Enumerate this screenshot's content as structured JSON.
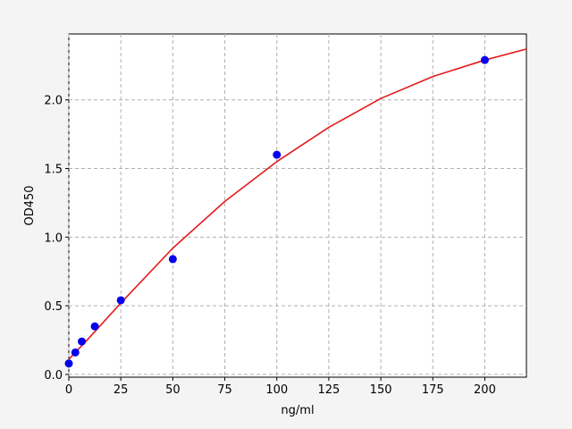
{
  "chart_data": {
    "type": "scatter",
    "xlabel": "ng/ml",
    "ylabel": "OD450",
    "xlim": [
      0,
      220
    ],
    "ylim": [
      -0.02,
      2.48
    ],
    "xticks": [
      0,
      25,
      50,
      75,
      100,
      125,
      150,
      175,
      200
    ],
    "yticks": [
      0.0,
      0.5,
      1.0,
      1.5,
      2.0
    ],
    "ytick_labels": [
      "0.0",
      "0.5",
      "1.0",
      "1.5",
      "2.0"
    ],
    "grid": true,
    "series": [
      {
        "type": "scatter",
        "color": "#0000ee",
        "x": [
          0,
          3.125,
          6.25,
          12.5,
          25,
          50,
          100,
          200
        ],
        "y": [
          0.08,
          0.16,
          0.24,
          0.35,
          0.54,
          0.84,
          1.6,
          2.29
        ]
      },
      {
        "type": "line",
        "color": "#e41a1c",
        "x": [
          0,
          10,
          25,
          50,
          75,
          100,
          125,
          150,
          175,
          200,
          220
        ],
        "y": [
          0.11,
          0.27,
          0.52,
          0.92,
          1.26,
          1.55,
          1.8,
          2.01,
          2.17,
          2.29,
          2.37
        ]
      }
    ]
  }
}
